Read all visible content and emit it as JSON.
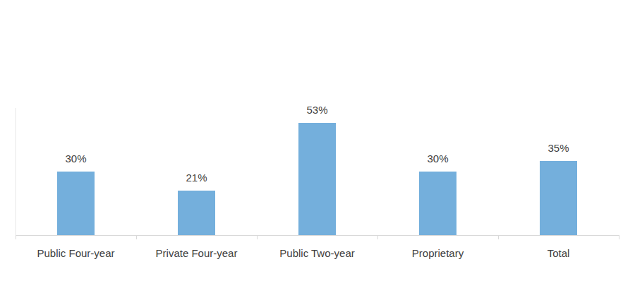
{
  "chart_data": {
    "type": "bar",
    "categories": [
      "Public Four-year",
      "Private Four-year",
      "Public Two-year",
      "Proprietary",
      "Total"
    ],
    "values": [
      30,
      21,
      53,
      30,
      35
    ],
    "value_labels": [
      "30%",
      "21%",
      "53%",
      "30%",
      "35%"
    ],
    "color": "#74afdc",
    "ylim": [
      0,
      60
    ],
    "data_labels": true,
    "grid": false,
    "tick_labels": "x"
  }
}
